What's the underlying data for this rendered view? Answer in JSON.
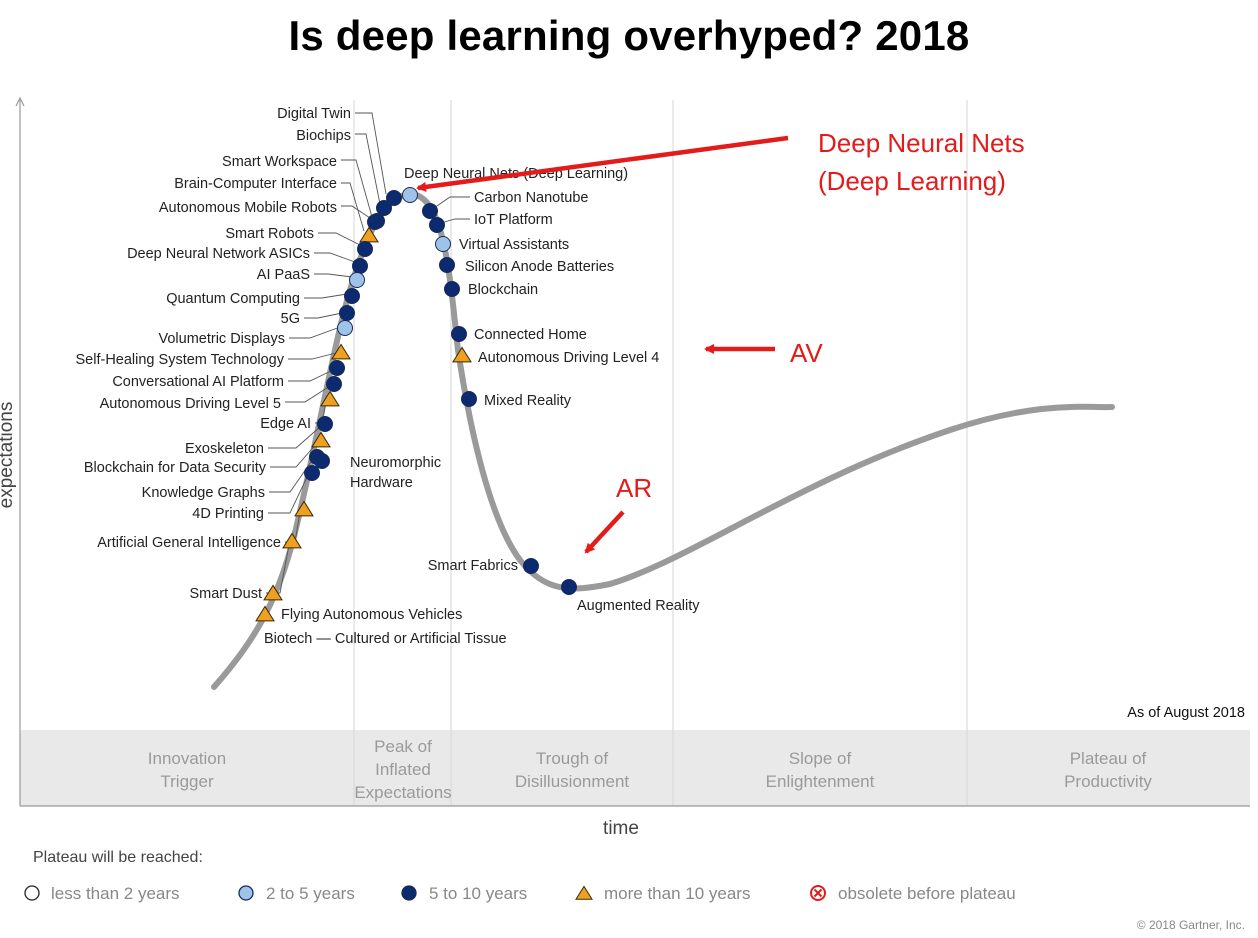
{
  "title": "Is deep learning overhyped?   2018",
  "chart_data": {
    "type": "scatter",
    "xlabel": "time",
    "ylabel": "expectations",
    "as_of": "As of August 2018",
    "copyright": "© 2018 Gartner, Inc.",
    "phases": [
      {
        "lines": [
          "Innovation",
          "Trigger"
        ]
      },
      {
        "lines": [
          "Peak of",
          "Inflated",
          "Expectations"
        ]
      },
      {
        "lines": [
          "Trough of",
          "Disillusionment"
        ]
      },
      {
        "lines": [
          "Slope of",
          "Enlightenment"
        ]
      },
      {
        "lines": [
          "Plateau of",
          "Productivity"
        ]
      }
    ],
    "legend": {
      "title": "Plateau will be reached:",
      "items": [
        {
          "key": "lt2",
          "label": "less than 2 years"
        },
        {
          "key": "2to5",
          "label": "2 to 5 years"
        },
        {
          "key": "5to10",
          "label": "5 to 10 years"
        },
        {
          "key": "gt10",
          "label": "more than 10 years"
        },
        {
          "key": "obsolete",
          "label": "obsolete before plateau"
        }
      ]
    },
    "colors": {
      "lt2": "#ffffff",
      "2to5": "#9ec3ea",
      "5to10": "#0b2a6f",
      "gt10": "#f0a020",
      "obsolete": "#e31b1b",
      "curve": "#9a9a9a",
      "annotation": "#e31b1b"
    },
    "technologies": [
      {
        "name": "Digital Twin",
        "cat": "5to10"
      },
      {
        "name": "Biochips",
        "cat": "5to10"
      },
      {
        "name": "Smart Workspace",
        "cat": "5to10"
      },
      {
        "name": "Brain-Computer Interface",
        "cat": "gt10"
      },
      {
        "name": "Autonomous Mobile Robots",
        "cat": "5to10"
      },
      {
        "name": "Smart Robots",
        "cat": "5to10"
      },
      {
        "name": "Deep Neural Network ASICs",
        "cat": "5to10"
      },
      {
        "name": "AI PaaS",
        "cat": "2to5"
      },
      {
        "name": "Quantum Computing",
        "cat": "5to10"
      },
      {
        "name": "5G",
        "cat": "5to10"
      },
      {
        "name": "Volumetric Displays",
        "cat": "2to5"
      },
      {
        "name": "Self-Healing System Technology",
        "cat": "gt10"
      },
      {
        "name": "Conversational AI Platform",
        "cat": "5to10"
      },
      {
        "name": "Autonomous Driving Level 5",
        "cat": "5to10"
      },
      {
        "name": "Edge AI",
        "cat": "gt10"
      },
      {
        "name": "Exoskeleton",
        "cat": "5to10"
      },
      {
        "name": "Blockchain for Data Security",
        "cat": "gt10"
      },
      {
        "name": "Knowledge Graphs",
        "cat": "5to10"
      },
      {
        "name": "4D Printing",
        "cat": "5to10"
      },
      {
        "name": "Artificial General Intelligence",
        "cat": "gt10"
      },
      {
        "name": "Smart Dust",
        "cat": "gt10"
      },
      {
        "name": "Flying Autonomous Vehicles",
        "cat": "gt10"
      },
      {
        "name": "Biotech — Cultured or Artificial Tissue",
        "cat": "gt10"
      },
      {
        "name": "Deep Neural Nets (Deep Learning)",
        "cat": "2to5"
      },
      {
        "name": "Carbon Nanotube",
        "cat": "5to10"
      },
      {
        "name": "IoT Platform",
        "cat": "5to10"
      },
      {
        "name": "Virtual Assistants",
        "cat": "2to5"
      },
      {
        "name": "Silicon Anode Batteries",
        "cat": "5to10"
      },
      {
        "name": "Blockchain",
        "cat": "5to10"
      },
      {
        "name": "Connected Home",
        "cat": "5to10"
      },
      {
        "name": "Autonomous Driving Level 4",
        "cat": "gt10"
      },
      {
        "name": "Mixed Reality",
        "cat": "5to10"
      },
      {
        "name": "Neuromorphic Hardware",
        "cat": "5to10"
      },
      {
        "name": "Smart Fabrics",
        "cat": "5to10"
      },
      {
        "name": "Augmented Reality",
        "cat": "5to10"
      }
    ],
    "annotations": [
      {
        "id": "dnn",
        "lines": [
          "Deep Neural Nets",
          "(Deep Learning)"
        ]
      },
      {
        "id": "av",
        "lines": [
          "AV"
        ]
      },
      {
        "id": "ar",
        "lines": [
          "AR"
        ]
      }
    ]
  }
}
